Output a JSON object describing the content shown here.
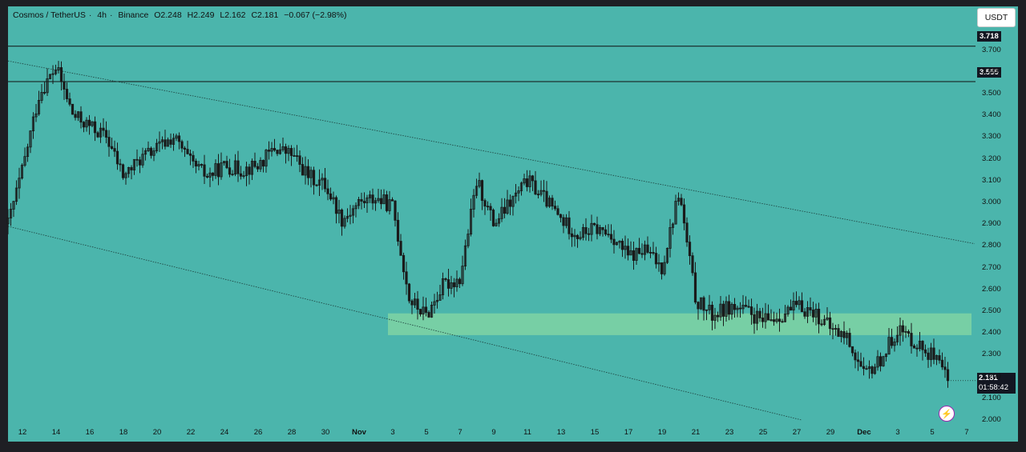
{
  "legend": {
    "symbol": "Cosmos / TetherUS",
    "interval": "4h",
    "exchange": "Binance",
    "open": "O2.248",
    "high": "H2.249",
    "low": "L2.162",
    "close": "C2.181",
    "change": "−0.067 (−2.98%)"
  },
  "currency_button": "USDT",
  "current_price": "2.181",
  "countdown": "01:58:42",
  "horizontal_levels": [
    "3.718",
    "3.555"
  ],
  "colors": {
    "background": "#4bb5ac",
    "zone": "#7fd4a3",
    "candles": "#1a1a1a",
    "frame": "#1e1f24"
  },
  "chart_data": {
    "type": "candlestick",
    "symbol": "Cosmos / TetherUS",
    "interval": "4h",
    "ylim": [
      2.0,
      3.75
    ],
    "y_ticks": [
      "2.000",
      "2.100",
      "2.200",
      "2.300",
      "2.400",
      "2.500",
      "2.600",
      "2.700",
      "2.800",
      "2.900",
      "3.000",
      "3.100",
      "3.200",
      "3.300",
      "3.400",
      "3.500",
      "3.600",
      "3.700"
    ],
    "x_ticks": [
      "12",
      "14",
      "16",
      "18",
      "20",
      "22",
      "24",
      "26",
      "28",
      "30",
      "Nov",
      "3",
      "5",
      "7",
      "9",
      "11",
      "13",
      "15",
      "17",
      "19",
      "21",
      "23",
      "25",
      "27",
      "29",
      "Dec",
      "3",
      "5",
      "7"
    ],
    "price_path": [
      {
        "date": "Oct 11",
        "price": 2.86
      },
      {
        "date": "Oct 12",
        "price": 3.15
      },
      {
        "date": "Oct 13",
        "price": 3.5
      },
      {
        "date": "Oct 14",
        "price": 3.62
      },
      {
        "date": "Oct 15",
        "price": 3.4
      },
      {
        "date": "Oct 16",
        "price": 3.35
      },
      {
        "date": "Oct 17",
        "price": 3.3
      },
      {
        "date": "Oct 18",
        "price": 3.12
      },
      {
        "date": "Oct 19",
        "price": 3.2
      },
      {
        "date": "Oct 20",
        "price": 3.25
      },
      {
        "date": "Oct 21",
        "price": 3.3
      },
      {
        "date": "Oct 22",
        "price": 3.18
      },
      {
        "date": "Oct 23",
        "price": 3.12
      },
      {
        "date": "Oct 24",
        "price": 3.17
      },
      {
        "date": "Oct 25",
        "price": 3.15
      },
      {
        "date": "Oct 26",
        "price": 3.17
      },
      {
        "date": "Oct 27",
        "price": 3.25
      },
      {
        "date": "Oct 28",
        "price": 3.22
      },
      {
        "date": "Oct 29",
        "price": 3.12
      },
      {
        "date": "Oct 30",
        "price": 3.08
      },
      {
        "date": "Oct 31",
        "price": 2.92
      },
      {
        "date": "Nov 1",
        "price": 3.0
      },
      {
        "date": "Nov 2",
        "price": 3.02
      },
      {
        "date": "Nov 3",
        "price": 2.98
      },
      {
        "date": "Nov 4",
        "price": 2.55
      },
      {
        "date": "Nov 5",
        "price": 2.48
      },
      {
        "date": "Nov 6",
        "price": 2.62
      },
      {
        "date": "Nov 7",
        "price": 2.65
      },
      {
        "date": "Nov 8",
        "price": 3.1
      },
      {
        "date": "Nov 9",
        "price": 2.9
      },
      {
        "date": "Nov 10",
        "price": 3.0
      },
      {
        "date": "Nov 11",
        "price": 3.1
      },
      {
        "date": "Nov 12",
        "price": 3.02
      },
      {
        "date": "Nov 13",
        "price": 2.92
      },
      {
        "date": "Nov 14",
        "price": 2.85
      },
      {
        "date": "Nov 15",
        "price": 2.88
      },
      {
        "date": "Nov 16",
        "price": 2.85
      },
      {
        "date": "Nov 17",
        "price": 2.75
      },
      {
        "date": "Nov 18",
        "price": 2.78
      },
      {
        "date": "Nov 19",
        "price": 2.7
      },
      {
        "date": "Nov 20",
        "price": 3.05
      },
      {
        "date": "Nov 21",
        "price": 2.55
      },
      {
        "date": "Nov 22",
        "price": 2.48
      },
      {
        "date": "Nov 23",
        "price": 2.52
      },
      {
        "date": "Nov 24",
        "price": 2.5
      },
      {
        "date": "Nov 25",
        "price": 2.45
      },
      {
        "date": "Nov 26",
        "price": 2.48
      },
      {
        "date": "Nov 27",
        "price": 2.52
      },
      {
        "date": "Nov 28",
        "price": 2.5
      },
      {
        "date": "Nov 29",
        "price": 2.42
      },
      {
        "date": "Nov 30",
        "price": 2.38
      },
      {
        "date": "Dec 1",
        "price": 2.2
      },
      {
        "date": "Dec 2",
        "price": 2.28
      },
      {
        "date": "Dec 3",
        "price": 2.42
      },
      {
        "date": "Dec 4",
        "price": 2.36
      },
      {
        "date": "Dec 5",
        "price": 2.3
      },
      {
        "date": "Dec 6",
        "price": 2.181
      }
    ],
    "support_zone": {
      "from": "Nov 3",
      "to": "Dec 7",
      "low": 2.39,
      "high": 2.49
    },
    "trendlines": [
      {
        "name": "upper",
        "start": {
          "date": "Oct 11",
          "price": 3.65
        },
        "end": {
          "date": "Dec 7",
          "price": 2.81
        }
      },
      {
        "name": "lower",
        "start": {
          "date": "Oct 11",
          "price": 2.89
        },
        "end": {
          "date": "Dec 2",
          "price": 2.0
        }
      }
    ],
    "horizontal_lines": [
      3.718,
      3.555
    ],
    "last_price": 2.181
  }
}
